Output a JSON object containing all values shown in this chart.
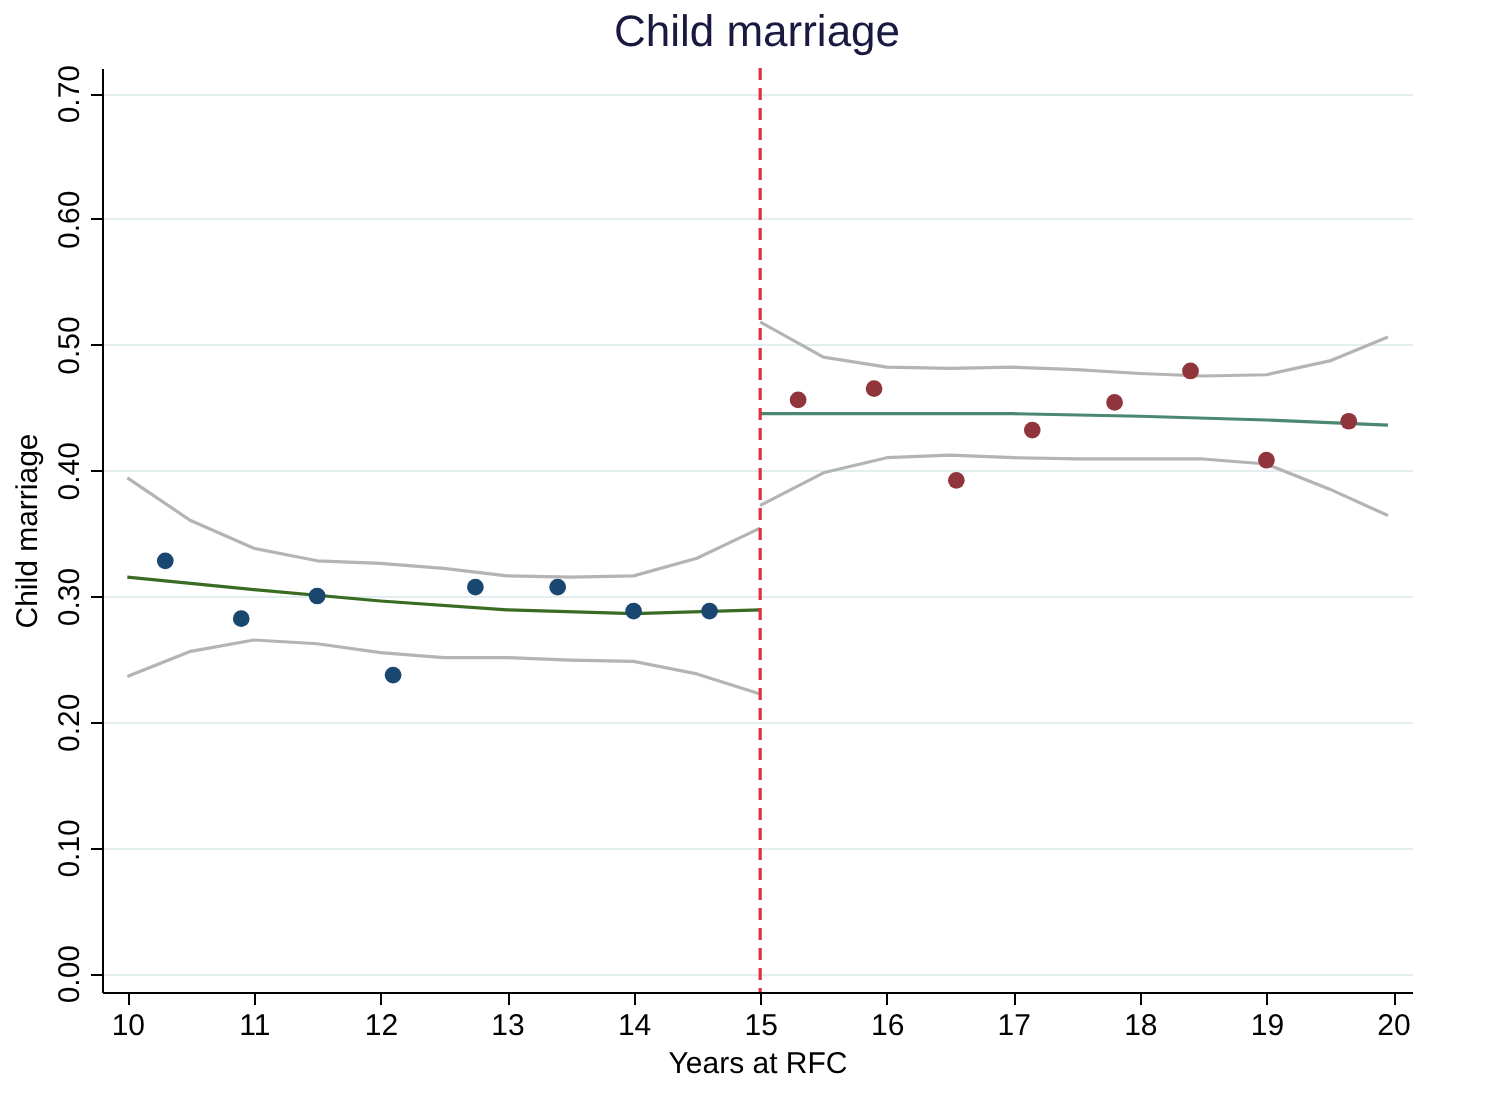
{
  "chart_data": {
    "type": "scatter",
    "title": "Child marriage",
    "xlabel": "Years at RFC",
    "ylabel": "Child marriage",
    "xlim": [
      9.8,
      20.15
    ],
    "xticks": [
      10,
      11,
      12,
      13,
      14,
      15,
      16,
      17,
      18,
      19,
      20
    ],
    "ylim": [
      -0.015,
      0.72
    ],
    "yticks": [
      {
        "value": 0,
        "label": "0.00"
      },
      {
        "value": 0.1,
        "label": "0.10"
      },
      {
        "value": 0.2,
        "label": "0.20"
      },
      {
        "value": 0.3,
        "label": "0.30"
      },
      {
        "value": 0.4,
        "label": "0.40"
      },
      {
        "value": 0.5,
        "label": "0.50"
      },
      {
        "value": 0.6,
        "label": "0.60"
      },
      {
        "value": 0.7,
        "label": "0.70"
      }
    ],
    "grid": "y",
    "marker": "circle",
    "ref_lines": [
      {
        "axis": "x",
        "value": 15,
        "color": "#e0303a",
        "line_style": "dashed"
      }
    ],
    "series": [
      {
        "type": "line",
        "marker": "none",
        "color": "#b4b4b4",
        "x": [
          10.0,
          10.5,
          11.0,
          11.5,
          12.0,
          12.5,
          13.0,
          13.5,
          14.0,
          14.5,
          15.0
        ],
        "values": [
          0.394,
          0.36,
          0.338,
          0.328,
          0.326,
          0.322,
          0.316,
          0.315,
          0.316,
          0.33,
          0.354
        ]
      },
      {
        "type": "line",
        "marker": "none",
        "color": "#b4b4b4",
        "x": [
          10.0,
          10.5,
          11.0,
          11.5,
          12.0,
          12.5,
          13.0,
          13.5,
          14.0,
          14.5,
          15.0
        ],
        "values": [
          0.236,
          0.256,
          0.265,
          0.262,
          0.255,
          0.251,
          0.251,
          0.249,
          0.248,
          0.238,
          0.222
        ]
      },
      {
        "type": "line",
        "marker": "none",
        "color": "#b4b4b4",
        "x": [
          15.0,
          15.5,
          16.0,
          16.5,
          17.0,
          17.5,
          18.0,
          18.5,
          19.0,
          19.5,
          19.96
        ],
        "values": [
          0.518,
          0.49,
          0.482,
          0.481,
          0.482,
          0.48,
          0.477,
          0.475,
          0.476,
          0.487,
          0.506
        ]
      },
      {
        "type": "line",
        "marker": "none",
        "color": "#b4b4b4",
        "x": [
          15.0,
          15.5,
          16.0,
          16.5,
          17.0,
          17.5,
          18.0,
          18.5,
          19.0,
          19.5,
          19.96
        ],
        "values": [
          0.372,
          0.398,
          0.41,
          0.412,
          0.41,
          0.409,
          0.409,
          0.409,
          0.405,
          0.385,
          0.364
        ]
      },
      {
        "type": "line",
        "marker": "none",
        "color": "#3a6b23",
        "x": [
          10.0,
          11.0,
          12.0,
          13.0,
          14.0,
          15.0
        ],
        "values": [
          0.315,
          0.305,
          0.296,
          0.289,
          0.286,
          0.289
        ]
      },
      {
        "type": "line",
        "marker": "none",
        "color": "#4a8870",
        "x": [
          15.0,
          16.0,
          17.0,
          18.0,
          19.0,
          19.96
        ],
        "values": [
          0.445,
          0.445,
          0.445,
          0.443,
          0.44,
          0.436
        ]
      },
      {
        "color": "#1a476f",
        "x": [
          10.3,
          10.9,
          11.5,
          12.1,
          12.75,
          13.4,
          14.0,
          14.6
        ],
        "values": [
          0.328,
          0.282,
          0.3,
          0.237,
          0.307,
          0.307,
          0.288,
          0.288
        ]
      },
      {
        "color": "#90353b",
        "x": [
          15.3,
          15.9,
          16.55,
          17.15,
          17.8,
          18.4,
          19.0,
          19.65
        ],
        "values": [
          0.456,
          0.465,
          0.392,
          0.432,
          0.454,
          0.479,
          0.408,
          0.439
        ]
      }
    ]
  }
}
